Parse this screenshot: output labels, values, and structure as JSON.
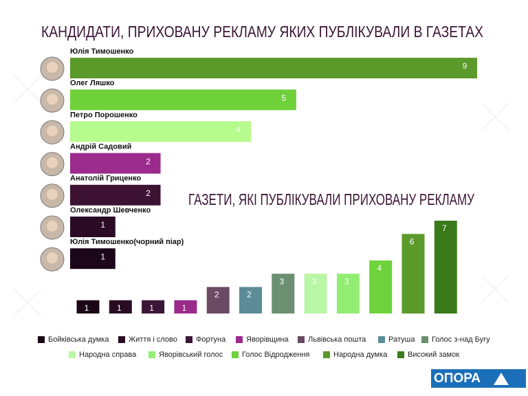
{
  "chart_data": [
    {
      "type": "hbar",
      "title": "КАНДИДАТИ, ПРИХОВАНУ РЕКЛАМУ ЯКИХ ПУБЛІКУВАЛИ В ГАЗЕТАХ",
      "categories": [
        "Юлія Тимошенко",
        "Олег Ляшко",
        "Петро Порошенко",
        "Андрій Садовий",
        "Анатолій Гриценко",
        "Олександр Шевченко",
        "Юлія Тимошенко(чорний піар)"
      ],
      "values": [
        9,
        5,
        4,
        2,
        2,
        1,
        1
      ],
      "colors": [
        "#5c9a2c",
        "#6fd13a",
        "#b6fb8e",
        "#9c2b8e",
        "#3d1232",
        "#2a0a24",
        "#1c0619"
      ],
      "xlim": [
        0,
        9
      ]
    },
    {
      "type": "bar",
      "title": "ГАЗЕТИ, ЯКІ ПУБЛІКУВАЛИ ПРИХОВАНУ РЕКЛАМУ",
      "categories": [
        "Бойківська думка",
        "Життя і слово",
        "Фортуна",
        "Яворівщина",
        "Львівська пошта",
        "Ратуша",
        "Голос з-над Бугу",
        "Народна справа",
        "Яворівський голос",
        "Голос Відродження",
        "Народна думка",
        "Високий замок"
      ],
      "values": [
        1,
        1,
        1,
        1,
        2,
        2,
        3,
        3,
        3,
        4,
        6,
        7
      ],
      "colors": [
        "#1a0817",
        "#2a0b24",
        "#3b1636",
        "#9a2a8b",
        "#6b4a63",
        "#5b8c97",
        "#6b9071",
        "#b9f6a6",
        "#91ee72",
        "#6ed23b",
        "#5c9a2c",
        "#3b7a1b"
      ],
      "ylim": [
        0,
        7
      ]
    }
  ],
  "logo": "ОПОРА"
}
